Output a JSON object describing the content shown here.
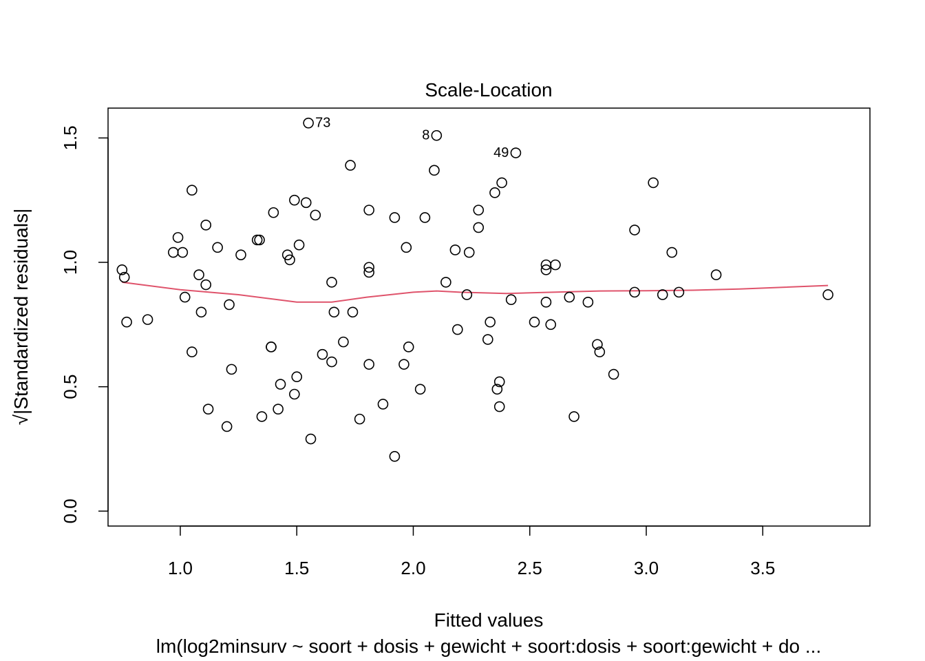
{
  "chart_data": {
    "type": "scatter",
    "title": "Scale-Location",
    "xlabel": "Fitted values",
    "ylabel": "√|Standardized residuals|",
    "subtitle": "lm(log2minsurv ~ soort + dosis + gewicht + soort:dosis + soort:gewicht + do ...",
    "xlim": [
      0.69,
      3.96
    ],
    "ylim": [
      -0.06,
      1.62
    ],
    "x_ticks": [
      1.0,
      1.5,
      2.0,
      2.5,
      3.0,
      3.5
    ],
    "y_ticks": [
      0.0,
      0.5,
      1.0,
      1.5
    ],
    "x_tick_labels": [
      "1.0",
      "1.5",
      "2.0",
      "2.5",
      "3.0",
      "3.5"
    ],
    "y_tick_labels": [
      "0.0",
      "0.5",
      "1.0",
      "1.5"
    ],
    "grid": false,
    "colors": {
      "points": "#000000",
      "smooth": "#df536b",
      "frame": "#000000"
    },
    "points": [
      [
        0.75,
        0.97
      ],
      [
        0.76,
        0.94
      ],
      [
        0.77,
        0.76
      ],
      [
        0.86,
        0.77
      ],
      [
        0.97,
        1.04
      ],
      [
        0.99,
        1.1
      ],
      [
        1.01,
        1.04
      ],
      [
        1.02,
        0.86
      ],
      [
        1.05,
        1.29
      ],
      [
        1.05,
        0.64
      ],
      [
        1.08,
        0.95
      ],
      [
        1.09,
        0.8
      ],
      [
        1.11,
        1.15
      ],
      [
        1.11,
        0.91
      ],
      [
        1.12,
        0.41
      ],
      [
        1.16,
        1.06
      ],
      [
        1.2,
        0.34
      ],
      [
        1.21,
        0.83
      ],
      [
        1.22,
        0.57
      ],
      [
        1.26,
        1.03
      ],
      [
        1.33,
        1.09
      ],
      [
        1.34,
        1.09
      ],
      [
        1.35,
        0.38
      ],
      [
        1.39,
        0.66
      ],
      [
        1.39,
        0.66
      ],
      [
        1.4,
        1.2
      ],
      [
        1.42,
        0.41
      ],
      [
        1.43,
        0.51
      ],
      [
        1.46,
        1.03
      ],
      [
        1.47,
        1.01
      ],
      [
        1.49,
        1.25
      ],
      [
        1.49,
        0.47
      ],
      [
        1.5,
        0.54
      ],
      [
        1.51,
        1.07
      ],
      [
        1.54,
        1.24
      ],
      [
        1.55,
        1.56
      ],
      [
        1.56,
        0.29
      ],
      [
        1.58,
        1.19
      ],
      [
        1.61,
        0.63
      ],
      [
        1.65,
        0.92
      ],
      [
        1.65,
        0.6
      ],
      [
        1.66,
        0.8
      ],
      [
        1.7,
        0.68
      ],
      [
        1.73,
        1.39
      ],
      [
        1.74,
        0.8
      ],
      [
        1.77,
        0.37
      ],
      [
        1.81,
        0.98
      ],
      [
        1.81,
        0.96
      ],
      [
        1.81,
        1.21
      ],
      [
        1.81,
        0.59
      ],
      [
        1.87,
        0.43
      ],
      [
        1.92,
        0.22
      ],
      [
        1.92,
        1.18
      ],
      [
        1.96,
        0.59
      ],
      [
        1.97,
        1.06
      ],
      [
        1.98,
        0.66
      ],
      [
        2.03,
        0.49
      ],
      [
        2.05,
        1.18
      ],
      [
        2.09,
        1.37
      ],
      [
        2.1,
        1.51
      ],
      [
        2.14,
        0.92
      ],
      [
        2.18,
        1.05
      ],
      [
        2.19,
        0.73
      ],
      [
        2.23,
        0.87
      ],
      [
        2.24,
        1.04
      ],
      [
        2.28,
        1.21
      ],
      [
        2.28,
        1.14
      ],
      [
        2.32,
        0.69
      ],
      [
        2.33,
        0.76
      ],
      [
        2.35,
        1.28
      ],
      [
        2.36,
        0.49
      ],
      [
        2.37,
        0.52
      ],
      [
        2.37,
        0.42
      ],
      [
        2.38,
        1.32
      ],
      [
        2.42,
        0.85
      ],
      [
        2.44,
        1.44
      ],
      [
        2.52,
        0.76
      ],
      [
        2.57,
        0.97
      ],
      [
        2.57,
        0.99
      ],
      [
        2.57,
        0.84
      ],
      [
        2.59,
        0.75
      ],
      [
        2.61,
        0.99
      ],
      [
        2.67,
        0.86
      ],
      [
        2.69,
        0.38
      ],
      [
        2.75,
        0.84
      ],
      [
        2.79,
        0.67
      ],
      [
        2.8,
        0.64
      ],
      [
        2.86,
        0.55
      ],
      [
        2.95,
        1.13
      ],
      [
        2.95,
        0.88
      ],
      [
        3.03,
        1.32
      ],
      [
        3.07,
        0.87
      ],
      [
        3.11,
        1.04
      ],
      [
        3.14,
        0.88
      ],
      [
        3.3,
        0.95
      ],
      [
        3.78,
        0.87
      ]
    ],
    "point_labels": [
      {
        "text": "73",
        "x": 1.55,
        "y": 1.56,
        "side": "right"
      },
      {
        "text": "8",
        "x": 2.1,
        "y": 1.51,
        "side": "left"
      },
      {
        "text": "49",
        "x": 2.44,
        "y": 1.44,
        "side": "left"
      }
    ],
    "smooth_line": [
      [
        0.75,
        0.92
      ],
      [
        1.0,
        0.89
      ],
      [
        1.25,
        0.87
      ],
      [
        1.5,
        0.84
      ],
      [
        1.65,
        0.84
      ],
      [
        1.8,
        0.86
      ],
      [
        2.0,
        0.88
      ],
      [
        2.1,
        0.885
      ],
      [
        2.2,
        0.88
      ],
      [
        2.4,
        0.875
      ],
      [
        2.6,
        0.88
      ],
      [
        2.8,
        0.885
      ],
      [
        3.0,
        0.886
      ],
      [
        3.2,
        0.888
      ],
      [
        3.4,
        0.893
      ],
      [
        3.78,
        0.907
      ]
    ]
  }
}
